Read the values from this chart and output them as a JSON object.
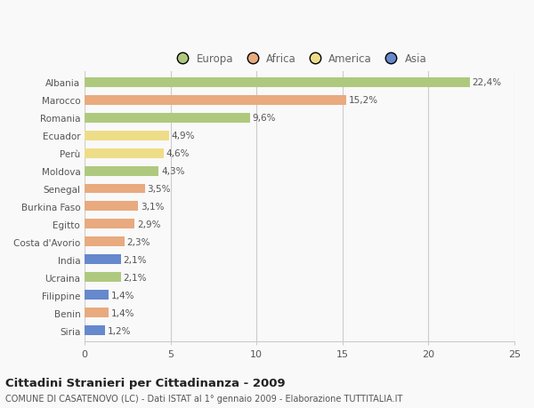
{
  "countries": [
    "Albania",
    "Marocco",
    "Romania",
    "Ecuador",
    "Perù",
    "Moldova",
    "Senegal",
    "Burkina Faso",
    "Egitto",
    "Costa d'Avorio",
    "India",
    "Ucraina",
    "Filippine",
    "Benin",
    "Siria"
  ],
  "values": [
    22.4,
    15.2,
    9.6,
    4.9,
    4.6,
    4.3,
    3.5,
    3.1,
    2.9,
    2.3,
    2.1,
    2.1,
    1.4,
    1.4,
    1.2
  ],
  "labels": [
    "22,4%",
    "15,2%",
    "9,6%",
    "4,9%",
    "4,6%",
    "4,3%",
    "3,5%",
    "3,1%",
    "2,9%",
    "2,3%",
    "2,1%",
    "2,1%",
    "1,4%",
    "1,4%",
    "1,2%"
  ],
  "continents": [
    "Europa",
    "Africa",
    "Europa",
    "America",
    "America",
    "Europa",
    "Africa",
    "Africa",
    "Africa",
    "Africa",
    "Asia",
    "Europa",
    "Asia",
    "Africa",
    "Asia"
  ],
  "colors": {
    "Europa": "#aec97e",
    "Africa": "#e8aa7e",
    "America": "#eedd88",
    "Asia": "#6688cc"
  },
  "xlim": [
    0,
    25
  ],
  "xticks": [
    0,
    5,
    10,
    15,
    20,
    25
  ],
  "title": "Cittadini Stranieri per Cittadinanza - 2009",
  "subtitle": "COMUNE DI CASATENOVO (LC) - Dati ISTAT al 1° gennaio 2009 - Elaborazione TUTTITALIA.IT",
  "background_color": "#f9f9f9",
  "grid_color": "#cccccc",
  "bar_height": 0.55,
  "label_fontsize": 7.5,
  "ytick_fontsize": 7.5,
  "xtick_fontsize": 8,
  "title_fontsize": 9.5,
  "subtitle_fontsize": 7
}
